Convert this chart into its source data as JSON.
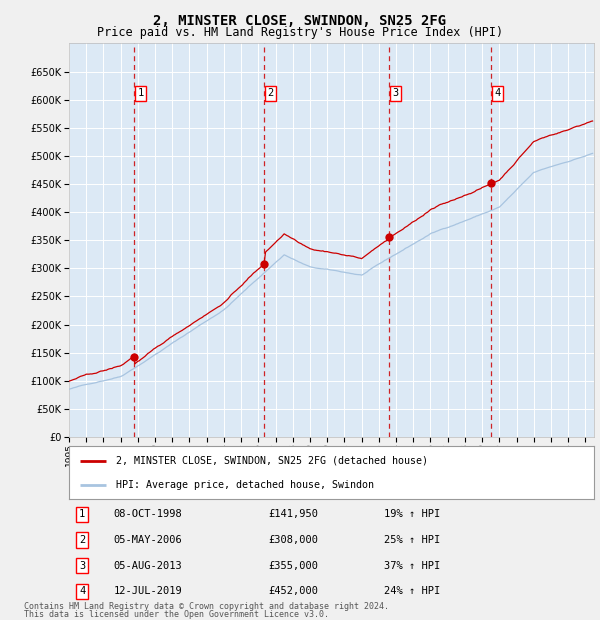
{
  "title": "2, MINSTER CLOSE, SWINDON, SN25 2FG",
  "subtitle": "Price paid vs. HM Land Registry's House Price Index (HPI)",
  "title_fontsize": 10,
  "subtitle_fontsize": 8.5,
  "ylim": [
    0,
    700000
  ],
  "yticks": [
    0,
    50000,
    100000,
    150000,
    200000,
    250000,
    300000,
    350000,
    400000,
    450000,
    500000,
    550000,
    600000,
    650000
  ],
  "xlim_start": 1995.0,
  "xlim_end": 2025.5,
  "xtick_years": [
    1995,
    1996,
    1997,
    1998,
    1999,
    2000,
    2001,
    2002,
    2003,
    2004,
    2005,
    2006,
    2007,
    2008,
    2009,
    2010,
    2011,
    2012,
    2013,
    2014,
    2015,
    2016,
    2017,
    2018,
    2019,
    2020,
    2021,
    2022,
    2023,
    2024,
    2025
  ],
  "background_color": "#f0f0f0",
  "plot_bg_color": "#dce9f5",
  "grid_color": "#ffffff",
  "hpi_line_color": "#a8c4e0",
  "price_line_color": "#cc0000",
  "marker_color": "#cc0000",
  "vline_color": "#cc0000",
  "transactions": [
    {
      "num": 1,
      "date": "08-OCT-1998",
      "year": 1998.77,
      "price": 141950,
      "hpi_pct": "19% ↑ HPI"
    },
    {
      "num": 2,
      "date": "05-MAY-2006",
      "year": 2006.34,
      "price": 308000,
      "hpi_pct": "25% ↑ HPI"
    },
    {
      "num": 3,
      "date": "05-AUG-2013",
      "year": 2013.59,
      "price": 355000,
      "hpi_pct": "37% ↑ HPI"
    },
    {
      "num": 4,
      "date": "12-JUL-2019",
      "year": 2019.52,
      "price": 452000,
      "hpi_pct": "24% ↑ HPI"
    }
  ],
  "legend_line1": "2, MINSTER CLOSE, SWINDON, SN25 2FG (detached house)",
  "legend_line2": "HPI: Average price, detached house, Swindon",
  "footer1": "Contains HM Land Registry data © Crown copyright and database right 2024.",
  "footer2": "This data is licensed under the Open Government Licence v3.0."
}
